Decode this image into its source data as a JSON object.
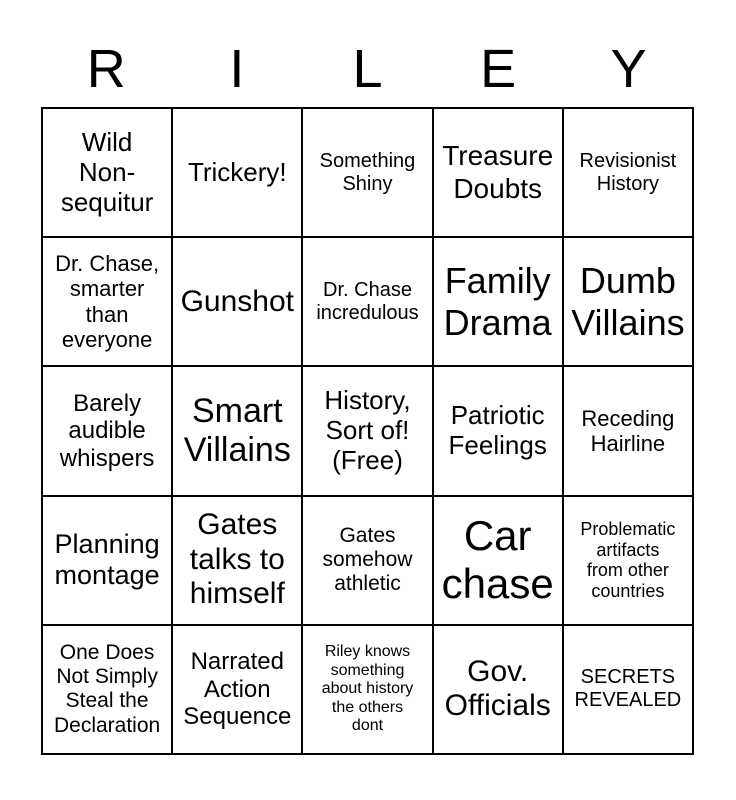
{
  "page": {
    "background_color": "#ffffff",
    "text_color": "#000000",
    "border_color": "#000000"
  },
  "title": {
    "word": "RILEY",
    "letters": [
      "R",
      "I",
      "L",
      "E",
      "Y"
    ]
  },
  "grid": {
    "rows": 5,
    "cols": 5,
    "free_space_text": "History,\nSort of!\n(Free)",
    "cells": [
      {
        "text": "Wild\nNon-\nsequitur",
        "size": 26
      },
      {
        "text": "Trickery!",
        "size": 26
      },
      {
        "text": "Something\nShiny",
        "size": 20
      },
      {
        "text": "Treasure\nDoubts",
        "size": 28
      },
      {
        "text": "Revisionist\nHistory",
        "size": 20
      },
      {
        "text": "Dr. Chase,\nsmarter\nthan\neveryone",
        "size": 22
      },
      {
        "text": "Gunshot",
        "size": 30
      },
      {
        "text": "Dr. Chase\nincredulous",
        "size": 20
      },
      {
        "text": "Family\nDrama",
        "size": 36
      },
      {
        "text": "Dumb\nVillains",
        "size": 36
      },
      {
        "text": "Barely\naudible\nwhispers",
        "size": 24
      },
      {
        "text": "Smart\nVillains",
        "size": 34
      },
      {
        "text": "History,\nSort of!\n(Free)",
        "size": 26
      },
      {
        "text": "Patriotic\nFeelings",
        "size": 26
      },
      {
        "text": "Receding\nHairline",
        "size": 22
      },
      {
        "text": "Planning\nmontage",
        "size": 27
      },
      {
        "text": "Gates\ntalks to\nhimself",
        "size": 30
      },
      {
        "text": "Gates\nsomehow\nathletic",
        "size": 21
      },
      {
        "text": "Car\nchase",
        "size": 42
      },
      {
        "text": "Problematic\nartifacts\nfrom other\ncountries",
        "size": 18
      },
      {
        "text": "One Does\nNot Simply\nSteal the\nDeclaration",
        "size": 21
      },
      {
        "text": "Narrated\nAction\nSequence",
        "size": 24
      },
      {
        "text": "Riley knows\nsomething\nabout history\nthe others\ndont",
        "size": 16
      },
      {
        "text": "Gov.\nOfficials",
        "size": 30
      },
      {
        "text": "SECRETS\nREVEALED",
        "size": 20
      }
    ]
  }
}
